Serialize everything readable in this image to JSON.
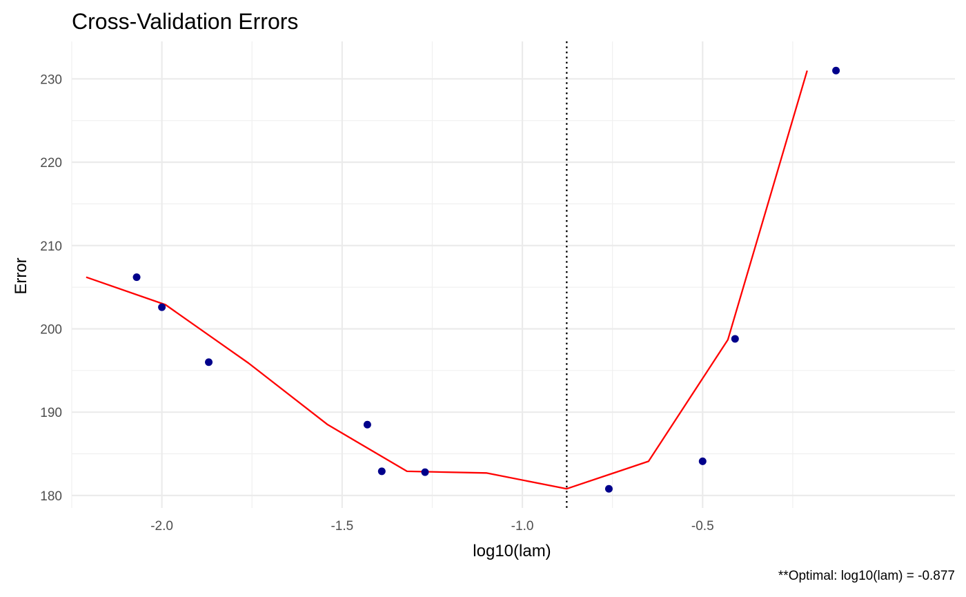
{
  "chart_data": {
    "type": "scatter",
    "title": "Cross-Validation Errors",
    "xlabel": "log10(lam)",
    "ylabel": "Error",
    "caption": "**Optimal: log10(lam) = -0.877",
    "xlim": [
      -2.25,
      0.2
    ],
    "ylim": [
      178.5,
      234.5
    ],
    "x_ticks": [
      -2.0,
      -1.5,
      -1.0,
      -0.5
    ],
    "x_tick_labels": [
      "-2.0",
      "-1.5",
      "-1.0",
      "-0.5"
    ],
    "y_ticks": [
      180,
      190,
      200,
      210,
      220,
      230
    ],
    "y_tick_labels": [
      "180",
      "190",
      "200",
      "210",
      "220",
      "230"
    ],
    "grid": true,
    "optimal_x": -0.877,
    "series": [
      {
        "type": "scatter",
        "color": "#00008b",
        "x": [
          -2.07,
          -2.0,
          -1.87,
          -1.43,
          -1.39,
          -1.27,
          -0.76,
          -0.5,
          -0.41,
          -0.13
        ],
        "y": [
          206.2,
          202.6,
          196.0,
          188.5,
          182.9,
          182.8,
          180.8,
          184.1,
          198.8,
          231.0
        ]
      },
      {
        "type": "line",
        "color": "#ff0000",
        "x": [
          -2.21,
          -1.99,
          -1.76,
          -1.54,
          -1.32,
          -1.1,
          -0.877,
          -0.65,
          -0.43,
          -0.21
        ],
        "y": [
          206.2,
          202.9,
          195.9,
          188.5,
          182.9,
          182.7,
          180.8,
          184.1,
          198.7,
          231.0
        ]
      }
    ]
  }
}
